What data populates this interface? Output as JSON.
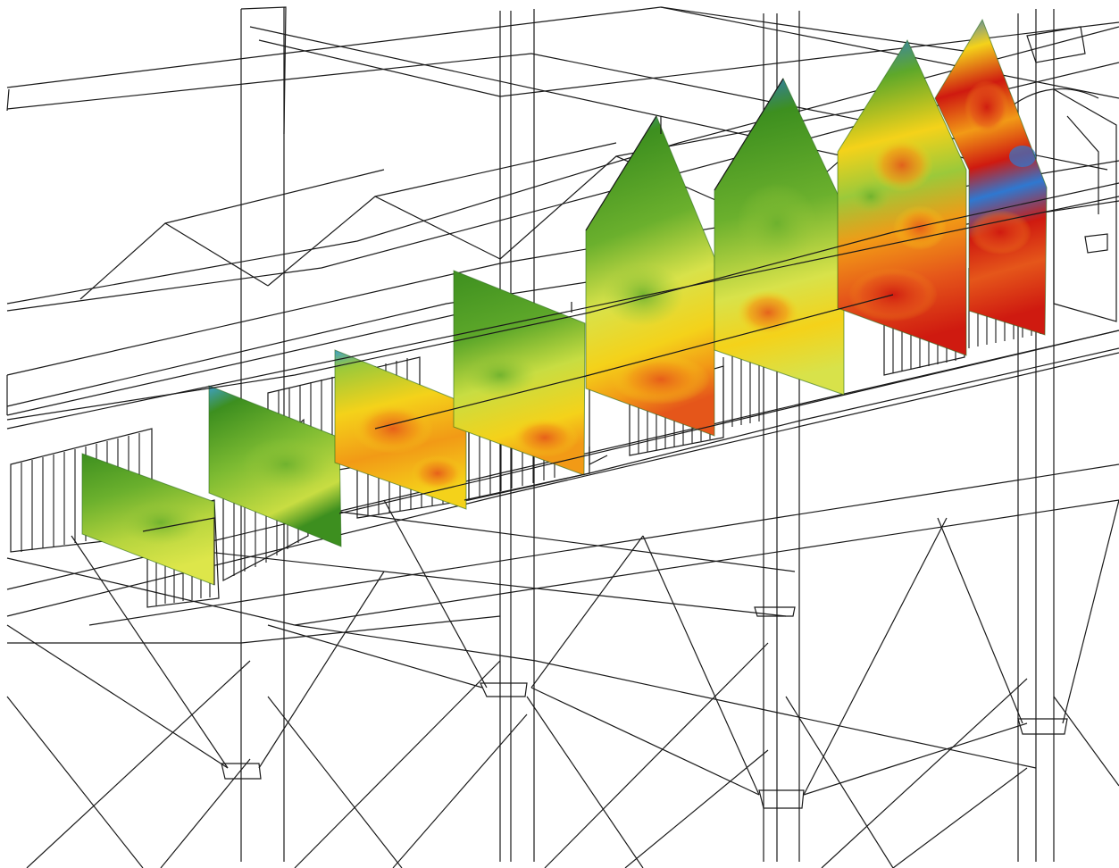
{
  "colors": {
    "wireframe": "#1a1a1a",
    "background": "#ffffff",
    "contour_scale": [
      "#2f78d0",
      "#3fa0c8",
      "#3d8f1f",
      "#5ea82a",
      "#9bc93a",
      "#d8e24a",
      "#f4d21a",
      "#f29a16",
      "#e5561a",
      "#cf1a10"
    ]
  },
  "panels": [
    {
      "id": "panel-1",
      "label": ""
    },
    {
      "id": "panel-2",
      "label": ""
    },
    {
      "id": "panel-3",
      "label": ""
    },
    {
      "id": "panel-4",
      "label": ""
    },
    {
      "id": "panel-5",
      "label": ""
    },
    {
      "id": "panel-6",
      "label": ""
    },
    {
      "id": "panel-7",
      "label": ""
    },
    {
      "id": "panel-8",
      "label": ""
    }
  ]
}
